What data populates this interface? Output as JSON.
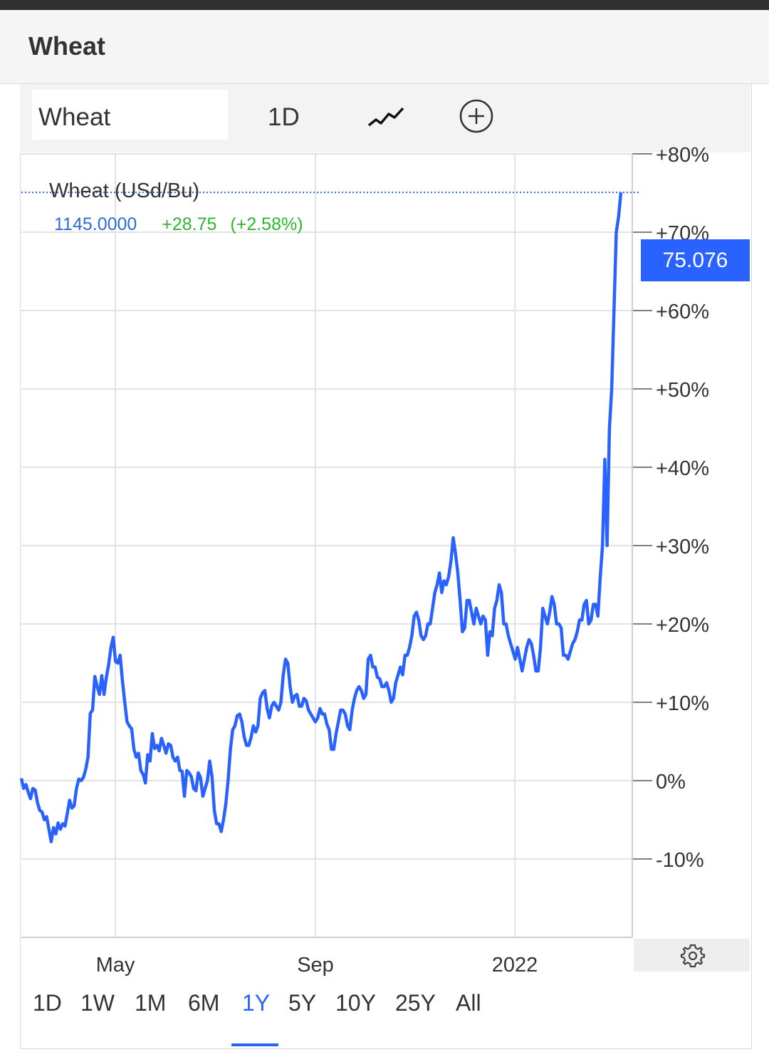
{
  "header": {
    "title": "Wheat"
  },
  "toolbar": {
    "symbol": "Wheat",
    "interval": "1D",
    "chart_type_icon": "line-chart-icon",
    "add_icon": "plus-circle-icon"
  },
  "legend": {
    "title": "Wheat (USd/Bu)",
    "price": "1145.0000",
    "change": "+28.75",
    "change_pct": "(+2.58%)",
    "price_color": "#2f6bd8",
    "change_color": "#2fb52f"
  },
  "current_label": "75.076",
  "settings_icon": "gear-icon",
  "ranges": [
    {
      "label": "1D",
      "active": false
    },
    {
      "label": "1W",
      "active": false
    },
    {
      "label": "1M",
      "active": false
    },
    {
      "label": "6M",
      "active": false
    },
    {
      "label": "1Y",
      "active": true
    },
    {
      "label": "5Y",
      "active": false
    },
    {
      "label": "10Y",
      "active": false
    },
    {
      "label": "25Y",
      "active": false
    },
    {
      "label": "All",
      "active": false
    }
  ],
  "colors": {
    "line": "#2962ff",
    "accent": "#2962ff",
    "grid": "#e3e3e3"
  },
  "chart_data": {
    "type": "line",
    "title": "Wheat (USd/Bu)",
    "xlabel": "",
    "ylabel": "",
    "x_ticks": [
      "May",
      "Sep",
      "2022"
    ],
    "y_ticks": [
      "+80%",
      "+70%",
      "+60%",
      "+50%",
      "+40%",
      "+30%",
      "+20%",
      "+10%",
      "0%",
      "-10%"
    ],
    "ylim": [
      -20,
      80
    ],
    "grid": true,
    "last_value": 75.076,
    "series": [
      {
        "values": [
          0.3,
          -1,
          -0.5,
          -1.5,
          -2.3,
          -1,
          -1.2,
          -2.8,
          -3.8,
          -4,
          -5,
          -4.6,
          -6.2,
          -7.8,
          -6,
          -6.8,
          -5.4,
          -6.2,
          -5.5,
          -5.8,
          -4.2,
          -2.5,
          -3.5,
          -3.2,
          -1,
          0.2,
          0,
          0.4,
          1.4,
          3,
          8.6,
          9,
          13.3,
          12,
          11,
          13.4,
          11,
          13.2,
          14.8,
          17,
          18.3,
          15.2,
          15,
          16,
          12.8,
          10,
          7.5,
          7,
          6.6,
          4,
          3,
          3.5,
          1.3,
          0.8,
          -0.3,
          3.3,
          2.5,
          6,
          4.1,
          4.5,
          3.8,
          5.4,
          4.5,
          3.5,
          4.7,
          4.5,
          3,
          2.5,
          3,
          1.3,
          1.2,
          -2,
          1.3,
          1,
          0.5,
          -1,
          -1.3,
          1,
          0.4,
          -2,
          -1,
          0,
          2.5,
          0.5,
          -3.8,
          -5.5,
          -5.5,
          -6.5,
          -5,
          -3,
          0,
          4,
          6.5,
          7,
          8.3,
          8.5,
          7.5,
          5.6,
          4.5,
          4.5,
          5.5,
          7,
          6.2,
          7,
          10.5,
          11.2,
          11.5,
          9.2,
          8,
          9.5,
          10,
          9.5,
          9,
          10,
          13.5,
          15.5,
          15,
          12,
          10,
          10.8,
          11,
          9.5,
          9.5,
          10.5,
          10.2,
          9,
          8.5,
          8,
          7.5,
          8,
          9.2,
          8.5,
          8.5,
          7.2,
          6.5,
          4,
          4,
          6,
          7.5,
          9,
          9,
          8.5,
          7,
          6.5,
          9,
          10.5,
          11.5,
          12,
          11.5,
          10.5,
          11,
          15.5,
          16,
          14.5,
          14.5,
          13.2,
          13,
          12,
          12,
          12.5,
          11.5,
          10,
          10.5,
          12.5,
          13.5,
          14.5,
          13.5,
          16,
          16,
          17,
          18.5,
          21,
          21.5,
          20.5,
          18.5,
          18,
          18.5,
          20,
          20,
          22,
          24,
          25,
          26.5,
          24,
          25.5,
          25,
          26,
          28,
          31,
          29,
          26.5,
          23,
          19,
          19.5,
          23,
          23,
          21.5,
          20,
          22,
          21,
          20,
          21,
          20.5,
          16,
          19,
          18.5,
          22,
          23,
          25,
          24,
          20,
          20,
          18.5,
          17.5,
          16.5,
          15.5,
          17,
          15.5,
          14,
          15.5,
          17,
          18,
          17.5,
          16,
          14,
          14,
          17,
          22,
          21,
          20,
          21.5,
          23.5,
          22.5,
          20,
          20,
          19.5,
          16,
          16,
          15.5,
          16.5,
          17.5,
          18,
          19,
          20.5,
          20.5,
          22.5,
          23,
          20,
          20.5,
          22.5,
          22.5,
          21,
          26,
          30,
          41,
          30,
          45,
          50,
          60,
          70,
          72,
          75.076
        ]
      }
    ]
  }
}
